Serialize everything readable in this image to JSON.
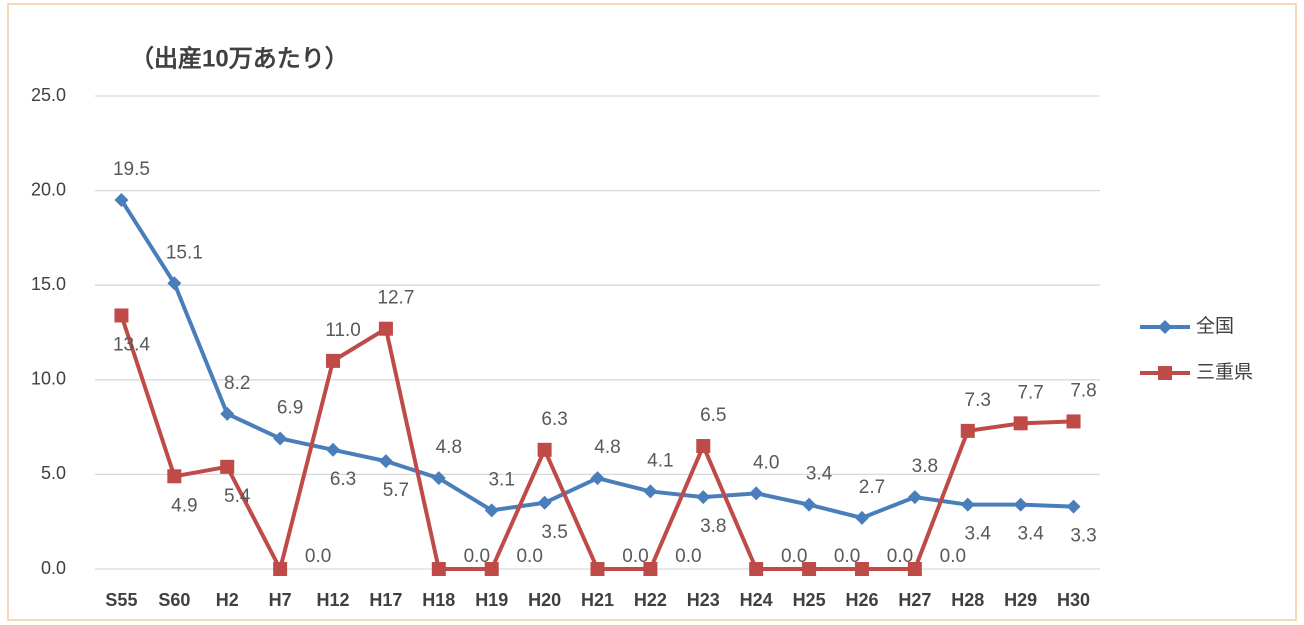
{
  "chart_data": {
    "type": "line",
    "title": "（出産10万あたり）",
    "categories": [
      "S55",
      "S60",
      "H2",
      "H7",
      "H12",
      "H17",
      "H18",
      "H19",
      "H20",
      "H21",
      "H22",
      "H23",
      "H24",
      "H25",
      "H26",
      "H27",
      "H28",
      "H29",
      "H30"
    ],
    "series": [
      {
        "name": "全国",
        "color": "#4a7ebb",
        "marker": "diamond",
        "values": [
          19.5,
          15.1,
          8.2,
          6.9,
          6.3,
          5.7,
          4.8,
          3.1,
          3.5,
          4.8,
          4.1,
          3.8,
          4.0,
          3.4,
          2.7,
          3.8,
          3.4,
          3.4,
          3.3
        ],
        "value_labels": [
          "19.5",
          "15.1",
          "8.2",
          "6.9",
          "6.3",
          "5.7",
          "4.8",
          "3.1",
          "3.5",
          "4.8",
          "4.1",
          "3.8",
          "4.0",
          "3.4",
          "2.7",
          "3.8",
          "3.4",
          "3.4",
          "3.3"
        ]
      },
      {
        "name": "三重県",
        "color": "#be4b48",
        "marker": "square",
        "values": [
          13.4,
          4.9,
          5.4,
          0.0,
          11.0,
          12.7,
          0.0,
          0.0,
          6.3,
          0.0,
          0.0,
          6.5,
          0.0,
          0.0,
          0.0,
          0.0,
          7.3,
          7.7,
          7.8
        ],
        "value_labels": [
          "13.4",
          "4.9",
          "5.4",
          "0.0",
          "11.0",
          "12.7",
          "0.0",
          "0.0",
          "6.3",
          "0.0",
          "0.0",
          "6.5",
          "0.0",
          "0.0",
          "0.0",
          "0.0",
          "7.3",
          "7.7",
          "7.8"
        ]
      }
    ],
    "ylim": [
      0,
      25
    ],
    "yticks": [
      {
        "value": 0,
        "label": "0.0"
      },
      {
        "value": 5,
        "label": "5.0"
      },
      {
        "value": 10,
        "label": "10.0"
      },
      {
        "value": 15,
        "label": "15.0"
      },
      {
        "value": 20,
        "label": "20.0"
      },
      {
        "value": 25,
        "label": "25.0"
      }
    ],
    "grid": true,
    "legend": "right"
  }
}
